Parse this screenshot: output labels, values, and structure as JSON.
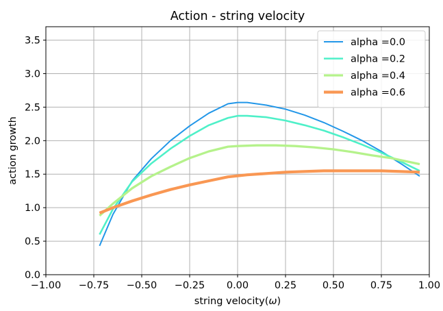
{
  "chart_data": {
    "type": "line",
    "title": "Action - string velocity",
    "xlabel_prefix": "string velocity(",
    "xlabel_symbol": "ω",
    "xlabel_suffix": ")",
    "ylabel": "action growth",
    "xlim": [
      -1.0,
      1.0
    ],
    "ylim": [
      0.0,
      3.7
    ],
    "xticks": [
      -1.0,
      -0.75,
      -0.5,
      -0.25,
      0.0,
      0.25,
      0.5,
      0.75,
      1.0
    ],
    "xtick_labels": [
      "−1.00",
      "−0.75",
      "−0.50",
      "−0.25",
      "0.00",
      "0.25",
      "0.50",
      "0.75",
      "1.00"
    ],
    "yticks": [
      0.0,
      0.5,
      1.0,
      1.5,
      2.0,
      2.5,
      3.0,
      3.5
    ],
    "ytick_labels": [
      "0.0",
      "0.5",
      "1.0",
      "1.5",
      "2.0",
      "2.5",
      "3.0",
      "3.5"
    ],
    "grid": true,
    "legend_position": "top-right",
    "series": [
      {
        "name": "alpha =0.0",
        "color": "#2196e8",
        "width": 2,
        "x": [
          -0.72,
          -0.65,
          -0.55,
          -0.45,
          -0.35,
          -0.25,
          -0.15,
          -0.05,
          0.0,
          0.05,
          0.15,
          0.25,
          0.35,
          0.45,
          0.55,
          0.65,
          0.75,
          0.85,
          0.95
        ],
        "y": [
          0.43,
          0.9,
          1.4,
          1.73,
          2.0,
          2.22,
          2.41,
          2.55,
          2.57,
          2.57,
          2.53,
          2.47,
          2.38,
          2.27,
          2.14,
          2.0,
          1.84,
          1.66,
          1.47
        ]
      },
      {
        "name": "alpha =0.2",
        "color": "#4ef0c8",
        "width": 2.6,
        "x": [
          -0.72,
          -0.65,
          -0.55,
          -0.45,
          -0.35,
          -0.25,
          -0.15,
          -0.05,
          0.0,
          0.05,
          0.15,
          0.25,
          0.35,
          0.45,
          0.55,
          0.65,
          0.75,
          0.85,
          0.95
        ],
        "y": [
          0.6,
          0.98,
          1.39,
          1.66,
          1.88,
          2.07,
          2.23,
          2.34,
          2.37,
          2.37,
          2.35,
          2.3,
          2.23,
          2.15,
          2.05,
          1.94,
          1.82,
          1.69,
          1.55
        ]
      },
      {
        "name": "alpha =0.4",
        "color": "#b5f28b",
        "width": 3.3,
        "x": [
          -0.72,
          -0.65,
          -0.55,
          -0.45,
          -0.35,
          -0.25,
          -0.15,
          -0.05,
          0.0,
          0.1,
          0.2,
          0.3,
          0.4,
          0.5,
          0.6,
          0.7,
          0.8,
          0.95
        ],
        "y": [
          0.88,
          1.06,
          1.29,
          1.47,
          1.61,
          1.74,
          1.84,
          1.91,
          1.92,
          1.93,
          1.93,
          1.92,
          1.9,
          1.87,
          1.83,
          1.78,
          1.74,
          1.65
        ]
      },
      {
        "name": "alpha =0.6",
        "color": "#f99753",
        "width": 4.2,
        "x": [
          -0.72,
          -0.65,
          -0.55,
          -0.45,
          -0.35,
          -0.25,
          -0.15,
          -0.05,
          0.05,
          0.15,
          0.25,
          0.35,
          0.45,
          0.55,
          0.65,
          0.75,
          0.85,
          0.95
        ],
        "y": [
          0.92,
          1.0,
          1.1,
          1.19,
          1.27,
          1.34,
          1.4,
          1.46,
          1.49,
          1.51,
          1.53,
          1.54,
          1.55,
          1.55,
          1.55,
          1.55,
          1.54,
          1.53
        ]
      }
    ]
  }
}
